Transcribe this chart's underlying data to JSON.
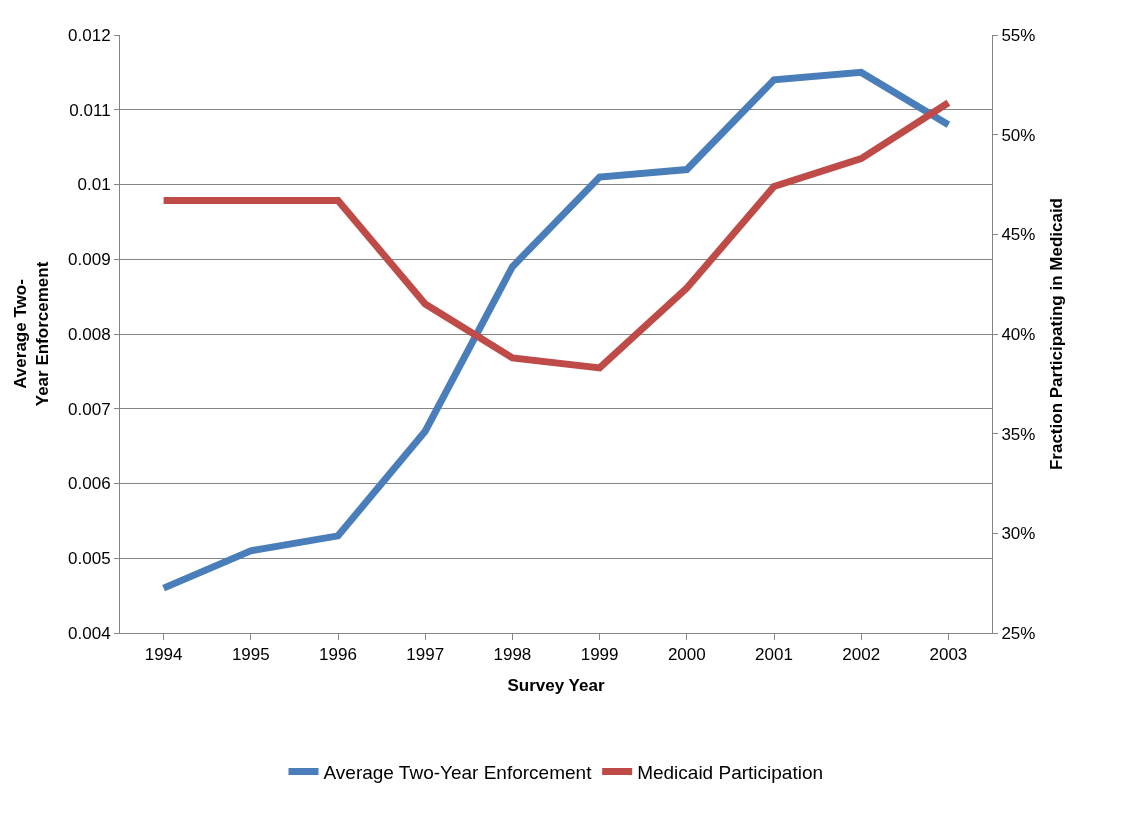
{
  "chart_data": {
    "type": "line",
    "xlabel": "Survey Year",
    "ylabel": "Average Two-Year Enforcement",
    "y2label": "Fraction Participating in Medicaid",
    "categories": [
      "1994",
      "1995",
      "1996",
      "1997",
      "1998",
      "1999",
      "2000",
      "2001",
      "2002",
      "2003"
    ],
    "series": [
      {
        "name": "Average Two-Year Enforcement",
        "color": "#4a7ebb",
        "values": [
          0.0046,
          0.0051,
          0.0053,
          0.0067,
          0.0089,
          0.0101,
          0.0102,
          0.0114,
          0.0115,
          0.0108
        ]
      },
      {
        "name": "Medicaid Participation",
        "color": "#be4b48",
        "axis": "y2",
        "values": [
          46.7,
          46.7,
          46.7,
          41.5,
          38.8,
          38.3,
          42.3,
          47.4,
          48.8,
          51.6
        ]
      }
    ],
    "ylim": [
      0.004,
      0.012
    ],
    "yticks": [
      0.004,
      0.005,
      0.006,
      0.007,
      0.008,
      0.009,
      0.01,
      0.011,
      0.012
    ],
    "y2lim": [
      25,
      55
    ],
    "y2ticks": [
      {
        "value": 25,
        "label": "25%"
      },
      {
        "value": 30,
        "label": "30%"
      },
      {
        "value": 35,
        "label": "35%"
      },
      {
        "value": 40,
        "label": "40%"
      },
      {
        "value": 45,
        "label": "45%"
      },
      {
        "value": 50,
        "label": "50%"
      },
      {
        "value": 55,
        "label": "55%"
      }
    ],
    "grid": "y",
    "legend": "bottom",
    "marker": "none",
    "line_style": "solid"
  }
}
